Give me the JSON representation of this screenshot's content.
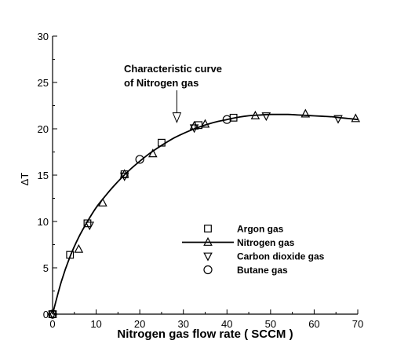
{
  "chart_data": {
    "type": "scatter",
    "xlabel": "Nitrogen gas flow rate ( SCCM )",
    "ylabel": "ΔT",
    "xlim": [
      0,
      70
    ],
    "ylim": [
      0,
      30
    ],
    "xticks": [
      0,
      10,
      20,
      30,
      40,
      50,
      60,
      70
    ],
    "yticks": [
      0,
      5,
      10,
      15,
      20,
      25,
      30
    ],
    "x_tick_labels": [
      "0",
      "10",
      "20",
      "30",
      "40",
      "50",
      "60",
      "70"
    ],
    "y_tick_labels": [
      "0",
      "5",
      "10",
      "15",
      "20",
      "25",
      "30"
    ],
    "grid": false,
    "legend_position": "lower-right",
    "annotation": {
      "lines": [
        "Characteristic curve",
        "of Nitrogen gas"
      ],
      "arrow_target": {
        "x": 28.5,
        "y": 20.2
      }
    },
    "series": [
      {
        "name": "Argon gas",
        "marker": "square",
        "points": [
          [
            0,
            0
          ],
          [
            4,
            6.4
          ],
          [
            8,
            9.8
          ],
          [
            16.5,
            15.1
          ],
          [
            25,
            18.5
          ],
          [
            33.5,
            20.4
          ],
          [
            41.5,
            21.2
          ]
        ]
      },
      {
        "name": "Nitrogen gas",
        "marker": "triangle-up",
        "line": true,
        "points": [
          [
            0,
            0
          ],
          [
            6,
            7
          ],
          [
            11.5,
            12
          ],
          [
            16.5,
            15.1
          ],
          [
            23,
            17.3
          ],
          [
            32.5,
            20.3
          ],
          [
            35,
            20.5
          ],
          [
            46.5,
            21.4
          ],
          [
            58,
            21.6
          ],
          [
            69.5,
            21.1
          ]
        ]
      },
      {
        "name": "Carbon dioxide gas",
        "marker": "triangle-down",
        "points": [
          [
            0,
            0
          ],
          [
            8.5,
            9.6
          ],
          [
            16.5,
            14.9
          ],
          [
            32.5,
            20.1
          ],
          [
            49,
            21.4
          ],
          [
            65.5,
            21.1
          ]
        ]
      },
      {
        "name": "Butane gas",
        "marker": "circle",
        "points": [
          [
            0,
            0
          ],
          [
            20,
            16.7
          ],
          [
            40,
            21
          ]
        ]
      }
    ],
    "curve": {
      "x": [
        0,
        2,
        4,
        6,
        8,
        10,
        12,
        14,
        16,
        18,
        20,
        22,
        24,
        26,
        28,
        30,
        32,
        34,
        36,
        38,
        40,
        42,
        44,
        46,
        48,
        50,
        52,
        54,
        56,
        58,
        60,
        62,
        64,
        66,
        68,
        70
      ],
      "y": [
        0,
        3.5,
        6.2,
        8.3,
        10.0,
        11.5,
        12.7,
        13.8,
        14.8,
        15.7,
        16.5,
        17.25,
        17.9,
        18.5,
        19.05,
        19.5,
        19.9,
        20.25,
        20.55,
        20.8,
        21.0,
        21.2,
        21.35,
        21.45,
        21.5,
        21.55,
        21.55,
        21.55,
        21.5,
        21.45,
        21.4,
        21.35,
        21.3,
        21.2,
        21.1,
        21.0
      ]
    }
  }
}
